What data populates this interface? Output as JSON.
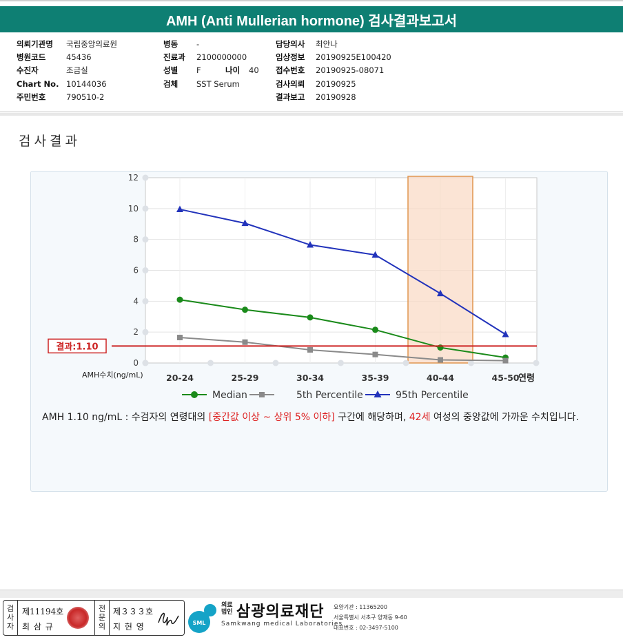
{
  "report": {
    "title": "AMH (Anti Mullerian hormone) 검사결과보고서"
  },
  "patient_info": {
    "institution_label": "의뢰기관명",
    "institution": "국립중앙의료원",
    "hospital_code_label": "병원코드",
    "hospital_code": "45436",
    "recipient_label": "수진자",
    "recipient": "조금실",
    "chart_no_label": "Chart No.",
    "chart_no": "10144036",
    "resident_no_label": "주민번호",
    "resident_no": "790510-2",
    "ward_label": "병동",
    "ward": "-",
    "department_label": "진료과",
    "department": "2100000000",
    "sex_label": "성별",
    "sex": "F",
    "age_label": "나이",
    "age": "40",
    "specimen_label": "검체",
    "specimen": "SST Serum",
    "doctor_label": "담당의사",
    "doctor": "최안나",
    "clinical_info_label": "임상정보",
    "clinical_info": "20190925E100420",
    "receipt_no_label": "접수번호",
    "receipt_no": "20190925-08071",
    "request_date_label": "검사의뢰",
    "request_date": "20190925",
    "report_date_label": "결과보고",
    "report_date": "20190928"
  },
  "section_title": "검사결과",
  "chart_data": {
    "type": "line",
    "categories": [
      "20-24",
      "25-29",
      "30-34",
      "35-39",
      "40-44",
      "45-50"
    ],
    "ylim": [
      0,
      12
    ],
    "yticks": [
      "0",
      "2",
      "4",
      "6",
      "8",
      "10",
      "12"
    ],
    "ylabel": "AMH수치(ng/mL)",
    "xlabel": "연령",
    "highlight_category": "40-44",
    "result_line": {
      "value": 1.1,
      "label": "결과:1.10",
      "color": "#cc2222"
    },
    "grid": true,
    "legend_position": "bottom",
    "series": [
      {
        "name": "Median",
        "color": "#1a8a1a",
        "marker": "circle",
        "values": [
          4.1,
          3.45,
          2.95,
          2.15,
          1.0,
          0.35
        ]
      },
      {
        "name": "5th Percentile",
        "color": "#8a8a8a",
        "marker": "square",
        "values": [
          1.65,
          1.35,
          0.85,
          0.55,
          0.2,
          0.15
        ]
      },
      {
        "name": "95th Percentile",
        "color": "#2233bb",
        "marker": "triangle",
        "values": [
          9.95,
          9.05,
          7.65,
          7.0,
          4.5,
          1.85
        ]
      }
    ]
  },
  "interpretation": {
    "part1": "AMH  1.10 ng/mL : 수검자의 연령대의 ",
    "range_text": "[중간값 이상 ~ 상위 5% 이하]",
    "part2": " 구간에 해당하며, ",
    "age_text": "42세",
    "part3": " 여성의 중앙값에 가까운 수치입니다."
  },
  "signature": {
    "inspector_label": "검사자",
    "inspector_license": "제11194호",
    "inspector_name": "최 삼 규",
    "specialist_label": "전문의",
    "specialist_license": "제３３３호",
    "specialist_name": "지 현 영"
  },
  "lab": {
    "small_label": "의료\n법인",
    "name_ko": "삼광의료재단",
    "name_en": "Samkwang medical Laboratories",
    "logo_text": "SML",
    "code": "요양기관 : 11365200",
    "address": "서울특별시 서초구 양재동 9-60",
    "phone": "대표번호 : 02-3497-5100"
  }
}
